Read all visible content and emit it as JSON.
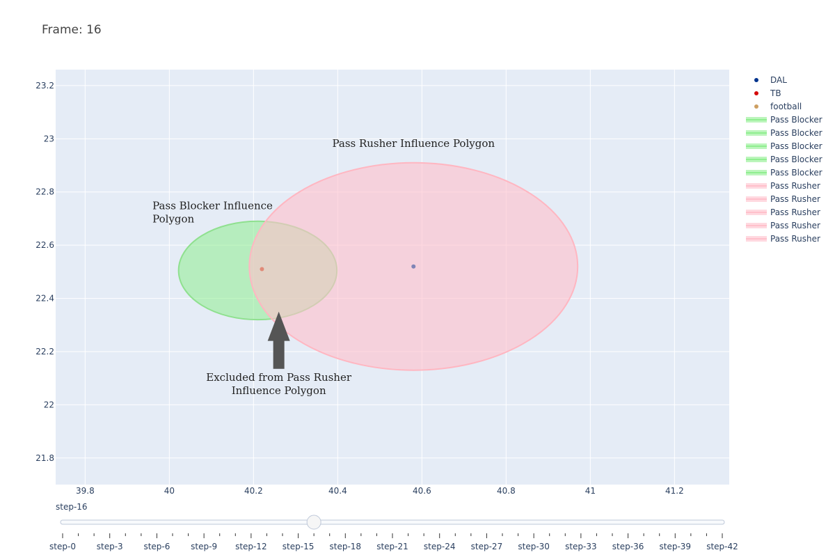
{
  "frame_title": "Frame: 16",
  "chart_data": {
    "type": "scatter",
    "title": "Frame: 16",
    "xlim": [
      39.73,
      41.33
    ],
    "ylim": [
      21.7,
      23.26
    ],
    "x_ticks": [
      39.8,
      40,
      40.2,
      40.4,
      40.6,
      40.8,
      41,
      41.2
    ],
    "x_tick_labels": [
      "39.8",
      "40",
      "40.2",
      "40.4",
      "40.6",
      "40.8",
      "41",
      "41.2"
    ],
    "y_ticks": [
      21.8,
      22,
      22.2,
      22.4,
      22.6,
      22.8,
      23,
      23.2
    ],
    "y_tick_labels": [
      "21.8",
      "22",
      "22.2",
      "22.4",
      "22.6",
      "22.8",
      "23",
      "23.2"
    ],
    "grid": true,
    "plot_bg": "#e5ecf6",
    "points": [
      {
        "team": "DAL",
        "x": 40.58,
        "y": 22.52,
        "color": "#7f84b6"
      },
      {
        "team": "TB",
        "x": 40.22,
        "y": 22.51,
        "color": "#e08a78"
      }
    ],
    "polygons": [
      {
        "label": "Pass Blocker",
        "cx": 40.21,
        "cy": 22.505,
        "rx": 0.188,
        "ry": 0.185,
        "fill": "#90ee90",
        "fill_opacity": 0.55,
        "stroke": "#8fe08f"
      },
      {
        "label": "Pass Rusher",
        "cx": 40.58,
        "cy": 22.52,
        "rx": 0.39,
        "ry": 0.39,
        "fill": "#ffc0cb",
        "fill_opacity": 0.6,
        "stroke": "#ffb6c1"
      }
    ],
    "legend": {
      "placement": "right",
      "entries": [
        {
          "name": "DAL",
          "kind": "marker",
          "color": "#00338d"
        },
        {
          "name": "TB",
          "kind": "marker",
          "color": "#d50a0a"
        },
        {
          "name": "football",
          "kind": "marker",
          "color": "#cd9f61"
        },
        {
          "name": "Pass Blocker",
          "kind": "area",
          "color": "#90ee90"
        },
        {
          "name": "Pass Blocker",
          "kind": "area",
          "color": "#90ee90"
        },
        {
          "name": "Pass Blocker",
          "kind": "area",
          "color": "#90ee90"
        },
        {
          "name": "Pass Blocker",
          "kind": "area",
          "color": "#90ee90"
        },
        {
          "name": "Pass Blocker",
          "kind": "area",
          "color": "#90ee90"
        },
        {
          "name": "Pass Rusher",
          "kind": "area",
          "color": "#ffc0cb"
        },
        {
          "name": "Pass Rusher",
          "kind": "area",
          "color": "#ffc0cb"
        },
        {
          "name": "Pass Rusher",
          "kind": "area",
          "color": "#ffc0cb"
        },
        {
          "name": "Pass Rusher",
          "kind": "area",
          "color": "#ffc0cb"
        },
        {
          "name": "Pass Rusher",
          "kind": "area",
          "color": "#ffc0cb"
        }
      ]
    },
    "annotations": [
      {
        "name": "pass-rusher-polygon-label",
        "lines": [
          "Pass Rusher Influence Polygon"
        ],
        "x": 40.58,
        "y": 22.97,
        "anchor": "middle"
      },
      {
        "name": "pass-blocker-polygon-label",
        "lines": [
          "Pass Blocker Influence",
          "Polygon"
        ],
        "x": 39.96,
        "y": 22.735,
        "anchor": "start"
      },
      {
        "name": "excluded-label",
        "lines": [
          "Excluded from Pass Rusher",
          "Influence Polygon"
        ],
        "x": 40.26,
        "y": 22.09,
        "anchor": "middle"
      }
    ],
    "arrow": {
      "x": 40.26,
      "tip_y": 22.35,
      "tail_y": 22.135,
      "color": "#555555"
    }
  },
  "slider": {
    "current_label": "step-16",
    "current_index": 16,
    "min": 0,
    "max": 42,
    "tick_labels": [
      "step-0",
      "step-3",
      "step-6",
      "step-9",
      "step-12",
      "step-15",
      "step-18",
      "step-21",
      "step-24",
      "step-27",
      "step-30",
      "step-33",
      "step-36",
      "step-39",
      "step-42"
    ]
  }
}
